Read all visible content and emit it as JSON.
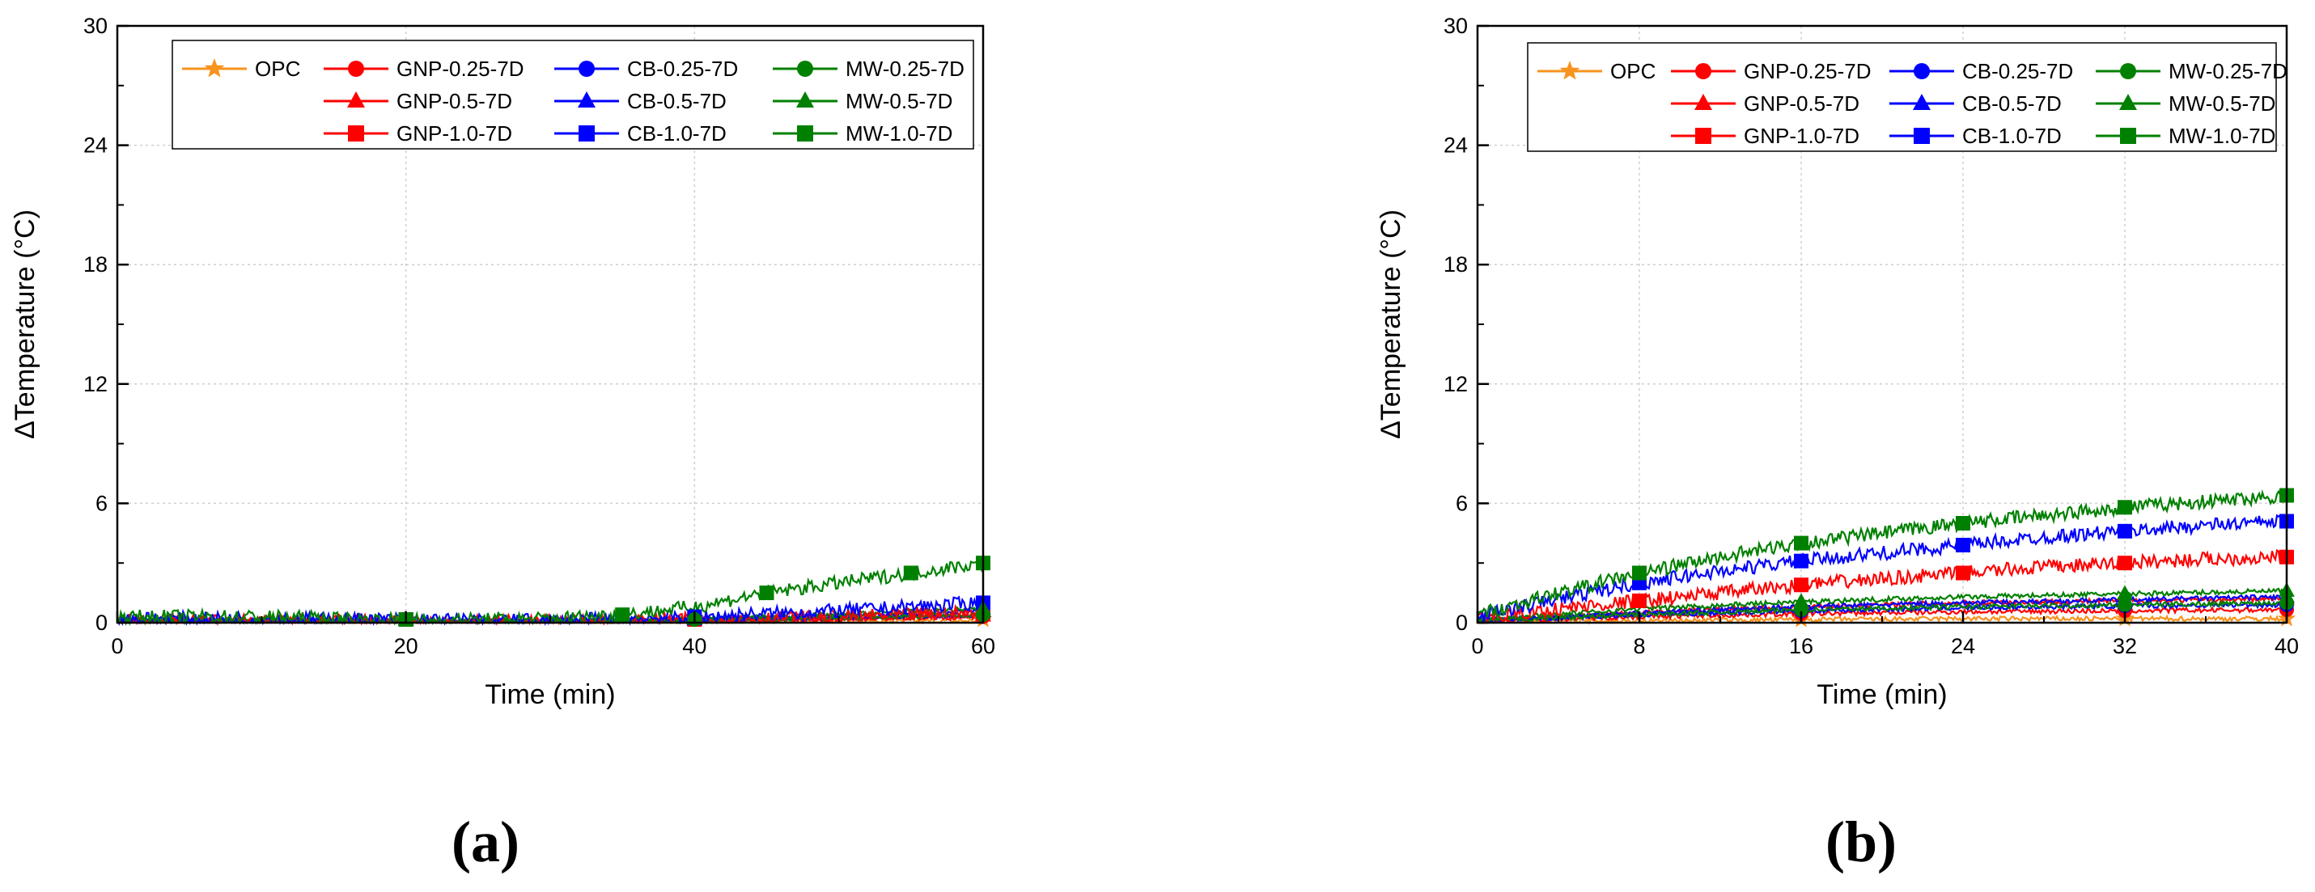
{
  "figure": {
    "panel_labels": [
      "(a)",
      "(b)"
    ]
  },
  "chart_data": [
    {
      "type": "line",
      "panel": "(a)",
      "xlabel": "Time (min)",
      "ylabel": "ΔTemperature (°C)",
      "xlim": [
        0,
        60
      ],
      "ylim": [
        0,
        30
      ],
      "xticks": [
        0,
        20,
        40,
        60
      ],
      "yticks": [
        0,
        6,
        12,
        18,
        24,
        30
      ],
      "grid": true,
      "legend_position": "top-right",
      "legend": [
        "OPC",
        "GNP-0.25-7D",
        "GNP-0.5-7D",
        "GNP-1.0-7D",
        "CB-0.25-7D",
        "CB-0.5-7D",
        "CB-1.0-7D",
        "MW-0.25-7D",
        "MW-0.5-7D",
        "MW-1.0-7D"
      ],
      "series": [
        {
          "name": "OPC",
          "color": "#f7931e",
          "marker": "star",
          "x": [
            0,
            10,
            20,
            30,
            40,
            50,
            60
          ],
          "y": [
            0.1,
            0.1,
            0.05,
            0.05,
            0.05,
            0.05,
            0.1
          ]
        },
        {
          "name": "GNP-0.25-7D",
          "color": "#ff0000",
          "marker": "circle",
          "x": [
            0,
            10,
            20,
            30,
            40,
            50,
            60
          ],
          "y": [
            0.1,
            0.1,
            0.05,
            0.05,
            0.1,
            0.2,
            0.3
          ]
        },
        {
          "name": "GNP-0.5-7D",
          "color": "#ff0000",
          "marker": "triangle",
          "x": [
            0,
            10,
            20,
            30,
            40,
            50,
            60
          ],
          "y": [
            0.1,
            0.1,
            0.05,
            0.05,
            0.1,
            0.2,
            0.35
          ]
        },
        {
          "name": "GNP-1.0-7D",
          "color": "#ff0000",
          "marker": "square",
          "x": [
            0,
            10,
            20,
            30,
            40,
            50,
            60
          ],
          "y": [
            0.1,
            0.1,
            0.05,
            0.05,
            0.15,
            0.3,
            0.5
          ]
        },
        {
          "name": "CB-0.25-7D",
          "color": "#0000ff",
          "marker": "circle",
          "x": [
            0,
            10,
            20,
            30,
            40,
            50,
            60
          ],
          "y": [
            0.1,
            0.1,
            0.05,
            0.05,
            0.1,
            0.25,
            0.4
          ]
        },
        {
          "name": "CB-0.5-7D",
          "color": "#0000ff",
          "marker": "triangle",
          "x": [
            0,
            10,
            20,
            30,
            40,
            50,
            60
          ],
          "y": [
            0.1,
            0.1,
            0.05,
            0.05,
            0.15,
            0.35,
            0.6
          ]
        },
        {
          "name": "CB-1.0-7D",
          "color": "#0000ff",
          "marker": "square",
          "x": [
            0,
            10,
            20,
            30,
            40,
            50,
            60
          ],
          "y": [
            0.2,
            0.2,
            0.15,
            0.1,
            0.3,
            0.6,
            1.0
          ]
        },
        {
          "name": "MW-0.25-7D",
          "color": "#008000",
          "marker": "circle",
          "x": [
            0,
            10,
            20,
            30,
            40,
            50,
            60
          ],
          "y": [
            0.1,
            0.1,
            0.05,
            0.05,
            0.1,
            0.25,
            0.4
          ]
        },
        {
          "name": "MW-0.5-7D",
          "color": "#008000",
          "marker": "triangle",
          "x": [
            0,
            10,
            20,
            30,
            40,
            50,
            60
          ],
          "y": [
            0.1,
            0.1,
            0.05,
            0.05,
            0.2,
            0.4,
            0.7
          ]
        },
        {
          "name": "MW-1.0-7D",
          "color": "#008000",
          "marker": "square",
          "x": [
            0,
            10,
            20,
            30,
            35,
            40,
            45,
            50,
            55,
            60
          ],
          "y": [
            0.3,
            0.3,
            0.1,
            0.2,
            0.4,
            0.8,
            1.5,
            2.0,
            2.5,
            3.0
          ]
        }
      ]
    },
    {
      "type": "line",
      "panel": "(b)",
      "xlabel": "Time (min)",
      "ylabel": "ΔTemperature (°C)",
      "xlim": [
        0,
        40
      ],
      "ylim": [
        0,
        30
      ],
      "xticks": [
        0,
        8,
        16,
        24,
        32,
        40
      ],
      "yticks": [
        0,
        6,
        12,
        18,
        24,
        30
      ],
      "grid": true,
      "legend_position": "top-right",
      "legend": [
        "OPC",
        "GNP-0.25-7D",
        "GNP-0.5-7D",
        "GNP-1.0-7D",
        "CB-0.25-7D",
        "CB-0.5-7D",
        "CB-1.0-7D",
        "MW-0.25-7D",
        "MW-0.5-7D",
        "MW-1.0-7D"
      ],
      "series": [
        {
          "name": "OPC",
          "color": "#f7931e",
          "marker": "star",
          "x": [
            0,
            8,
            16,
            24,
            32,
            40
          ],
          "y": [
            0.05,
            0.1,
            0.15,
            0.2,
            0.2,
            0.2
          ]
        },
        {
          "name": "GNP-0.25-7D",
          "color": "#ff0000",
          "marker": "circle",
          "x": [
            0,
            8,
            16,
            24,
            32,
            40
          ],
          "y": [
            0.1,
            0.3,
            0.45,
            0.55,
            0.6,
            0.65
          ]
        },
        {
          "name": "GNP-0.5-7D",
          "color": "#ff0000",
          "marker": "triangle",
          "x": [
            0,
            8,
            16,
            24,
            32,
            40
          ],
          "y": [
            0.1,
            0.5,
            0.8,
            1.0,
            1.1,
            1.2
          ]
        },
        {
          "name": "GNP-1.0-7D",
          "color": "#ff0000",
          "marker": "square",
          "x": [
            0,
            4,
            8,
            12,
            16,
            20,
            24,
            28,
            32,
            36,
            40
          ],
          "y": [
            0.2,
            0.7,
            1.1,
            1.5,
            1.9,
            2.2,
            2.5,
            2.8,
            3.0,
            3.2,
            3.3
          ]
        },
        {
          "name": "CB-0.25-7D",
          "color": "#0000ff",
          "marker": "circle",
          "x": [
            0,
            8,
            16,
            24,
            32,
            40
          ],
          "y": [
            0.1,
            0.4,
            0.6,
            0.75,
            0.85,
            0.9
          ]
        },
        {
          "name": "CB-0.5-7D",
          "color": "#0000ff",
          "marker": "triangle",
          "x": [
            0,
            8,
            16,
            24,
            32,
            40
          ],
          "y": [
            0.1,
            0.5,
            0.8,
            1.0,
            1.15,
            1.3
          ]
        },
        {
          "name": "CB-1.0-7D",
          "color": "#0000ff",
          "marker": "square",
          "x": [
            0,
            4,
            8,
            12,
            16,
            20,
            24,
            28,
            32,
            36,
            40
          ],
          "y": [
            0.3,
            1.2,
            2.0,
            2.6,
            3.1,
            3.5,
            3.9,
            4.3,
            4.6,
            4.9,
            5.1
          ]
        },
        {
          "name": "MW-0.25-7D",
          "color": "#008000",
          "marker": "circle",
          "x": [
            0,
            8,
            16,
            24,
            32,
            40
          ],
          "y": [
            0.1,
            0.4,
            0.65,
            0.8,
            0.9,
            1.0
          ]
        },
        {
          "name": "MW-0.5-7D",
          "color": "#008000",
          "marker": "triangle",
          "x": [
            0,
            8,
            16,
            24,
            32,
            40
          ],
          "y": [
            0.15,
            0.7,
            1.05,
            1.3,
            1.45,
            1.6
          ]
        },
        {
          "name": "MW-1.0-7D",
          "color": "#008000",
          "marker": "square",
          "x": [
            0,
            4,
            8,
            12,
            16,
            20,
            24,
            28,
            32,
            36,
            40
          ],
          "y": [
            0.4,
            1.5,
            2.5,
            3.3,
            4.0,
            4.5,
            5.0,
            5.4,
            5.8,
            6.1,
            6.4
          ]
        }
      ]
    }
  ]
}
